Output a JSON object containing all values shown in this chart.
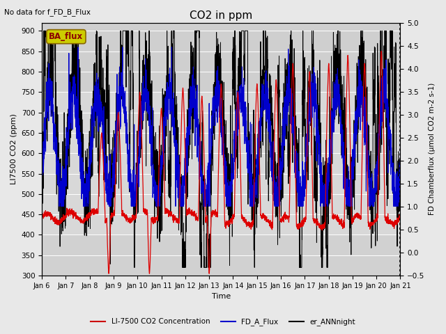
{
  "title": "CO2 in ppm",
  "top_left_text": "No data for f_FD_B_Flux",
  "annotation_box": "BA_flux",
  "xlabel": "Time",
  "ylabel_left": "LI7500 CO2 (ppm)",
  "ylabel_right": "FD Chamberflux (μmol CO2 m-2 s-1)",
  "ylim_left": [
    300,
    920
  ],
  "ylim_right": [
    -0.5,
    5.0
  ],
  "yticks_left": [
    300,
    350,
    400,
    450,
    500,
    550,
    600,
    650,
    700,
    750,
    800,
    850,
    900
  ],
  "yticks_right": [
    -0.5,
    0.0,
    0.5,
    1.0,
    1.5,
    2.0,
    2.5,
    3.0,
    3.5,
    4.0,
    4.5,
    5.0
  ],
  "xtick_labels": [
    "Jan 6",
    "Jan 7",
    "Jan 8",
    "Jan 9",
    "Jan 10",
    "Jan 11",
    "Jan 12",
    "Jan 13",
    "Jan 14",
    "Jan 15",
    "Jan 16",
    "Jan 17",
    "Jan 18",
    "Jan 19",
    "Jan 20",
    "Jan 21"
  ],
  "xstart": 6.0,
  "xend": 21.0,
  "xtick_positions": [
    6,
    7,
    8,
    9,
    10,
    11,
    12,
    13,
    14,
    15,
    16,
    17,
    18,
    19,
    20,
    21
  ],
  "legend_entries": [
    "LI-7500 CO2 Concentration",
    "FD_A_Flux",
    "er_ANNnight"
  ],
  "legend_colors": [
    "#cc0000",
    "#0000cc",
    "#000000"
  ],
  "line_color_red": "#dd0000",
  "line_color_blue": "#0000cc",
  "line_color_black": "#000000",
  "background_color": "#e8e8e8",
  "plot_bg_upper_color": "#d0d0d0",
  "plot_bg_lower_color": "#e0e0e0",
  "grid_color": "#ffffff",
  "annotation_bg": "#cccc00",
  "annotation_fg": "#8b0000",
  "seed": 42,
  "n_points": 3000
}
